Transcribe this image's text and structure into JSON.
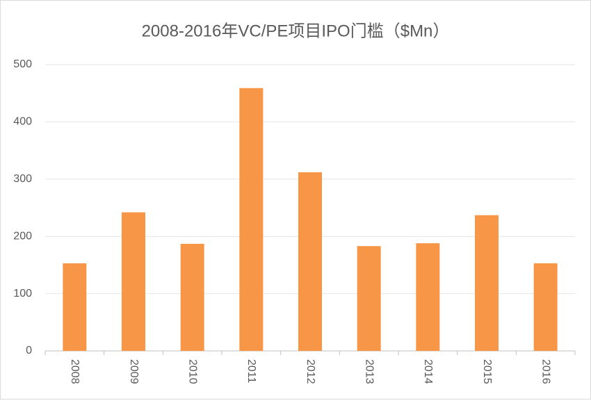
{
  "chart_data": {
    "type": "bar",
    "title": "2008-2016年VC/PE项目IPO门槛（$Mn）",
    "categories": [
      "2008",
      "2009",
      "2010",
      "2011",
      "2012",
      "2013",
      "2014",
      "2015",
      "2016"
    ],
    "values": [
      153,
      242,
      187,
      459,
      312,
      183,
      188,
      237,
      153
    ],
    "color": "#f79646",
    "ylim": [
      0,
      500
    ],
    "yticks": [
      0,
      100,
      200,
      300,
      400,
      500
    ],
    "grid": true
  }
}
